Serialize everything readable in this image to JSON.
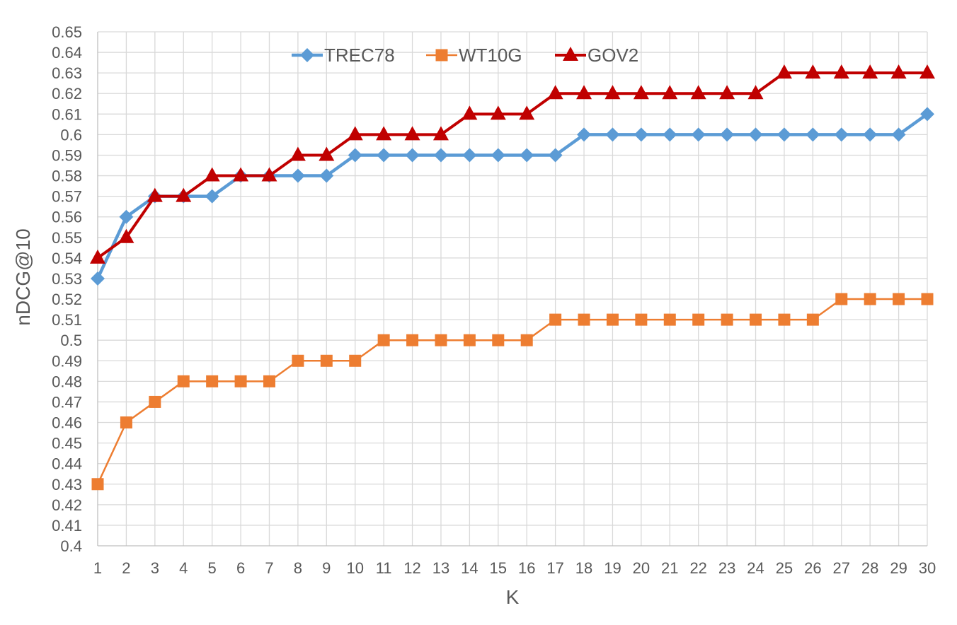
{
  "chart_data": {
    "type": "line",
    "xlabel": "K",
    "ylabel": "nDCG@10",
    "ylim": [
      0.4,
      0.65
    ],
    "y_step": 0.01,
    "x": [
      1,
      2,
      3,
      4,
      5,
      6,
      7,
      8,
      9,
      10,
      11,
      12,
      13,
      14,
      15,
      16,
      17,
      18,
      19,
      20,
      21,
      22,
      23,
      24,
      25,
      26,
      27,
      28,
      29,
      30
    ],
    "y_tick_labels": [
      "0.4",
      "0.41",
      "0.42",
      "0.43",
      "0.44",
      "0.45",
      "0.46",
      "0.47",
      "0.48",
      "0.49",
      "0.5",
      "0.51",
      "0.52",
      "0.53",
      "0.54",
      "0.55",
      "0.56",
      "0.57",
      "0.58",
      "0.59",
      "0.6",
      "0.61",
      "0.62",
      "0.63",
      "0.64",
      "0.65"
    ],
    "grid": true,
    "legend_position": "top-center",
    "series": [
      {
        "name": "TREC78",
        "color": "#5b9bd5",
        "marker": "diamond",
        "values": [
          0.53,
          0.56,
          0.57,
          0.57,
          0.57,
          0.58,
          0.58,
          0.58,
          0.58,
          0.59,
          0.59,
          0.59,
          0.59,
          0.59,
          0.59,
          0.59,
          0.59,
          0.6,
          0.6,
          0.6,
          0.6,
          0.6,
          0.6,
          0.6,
          0.6,
          0.6,
          0.6,
          0.6,
          0.6,
          0.61
        ]
      },
      {
        "name": "WT10G",
        "color": "#ed7d31",
        "marker": "square",
        "values": [
          0.43,
          0.46,
          0.47,
          0.48,
          0.48,
          0.48,
          0.48,
          0.49,
          0.49,
          0.49,
          0.5,
          0.5,
          0.5,
          0.5,
          0.5,
          0.5,
          0.51,
          0.51,
          0.51,
          0.51,
          0.51,
          0.51,
          0.51,
          0.51,
          0.51,
          0.51,
          0.52,
          0.52,
          0.52,
          0.52
        ]
      },
      {
        "name": "GOV2",
        "color": "#c00000",
        "marker": "triangle",
        "values": [
          0.54,
          0.55,
          0.57,
          0.57,
          0.58,
          0.58,
          0.58,
          0.59,
          0.59,
          0.6,
          0.6,
          0.6,
          0.6,
          0.61,
          0.61,
          0.61,
          0.62,
          0.62,
          0.62,
          0.62,
          0.62,
          0.62,
          0.62,
          0.62,
          0.63,
          0.63,
          0.63,
          0.63,
          0.63,
          0.63
        ]
      }
    ]
  }
}
